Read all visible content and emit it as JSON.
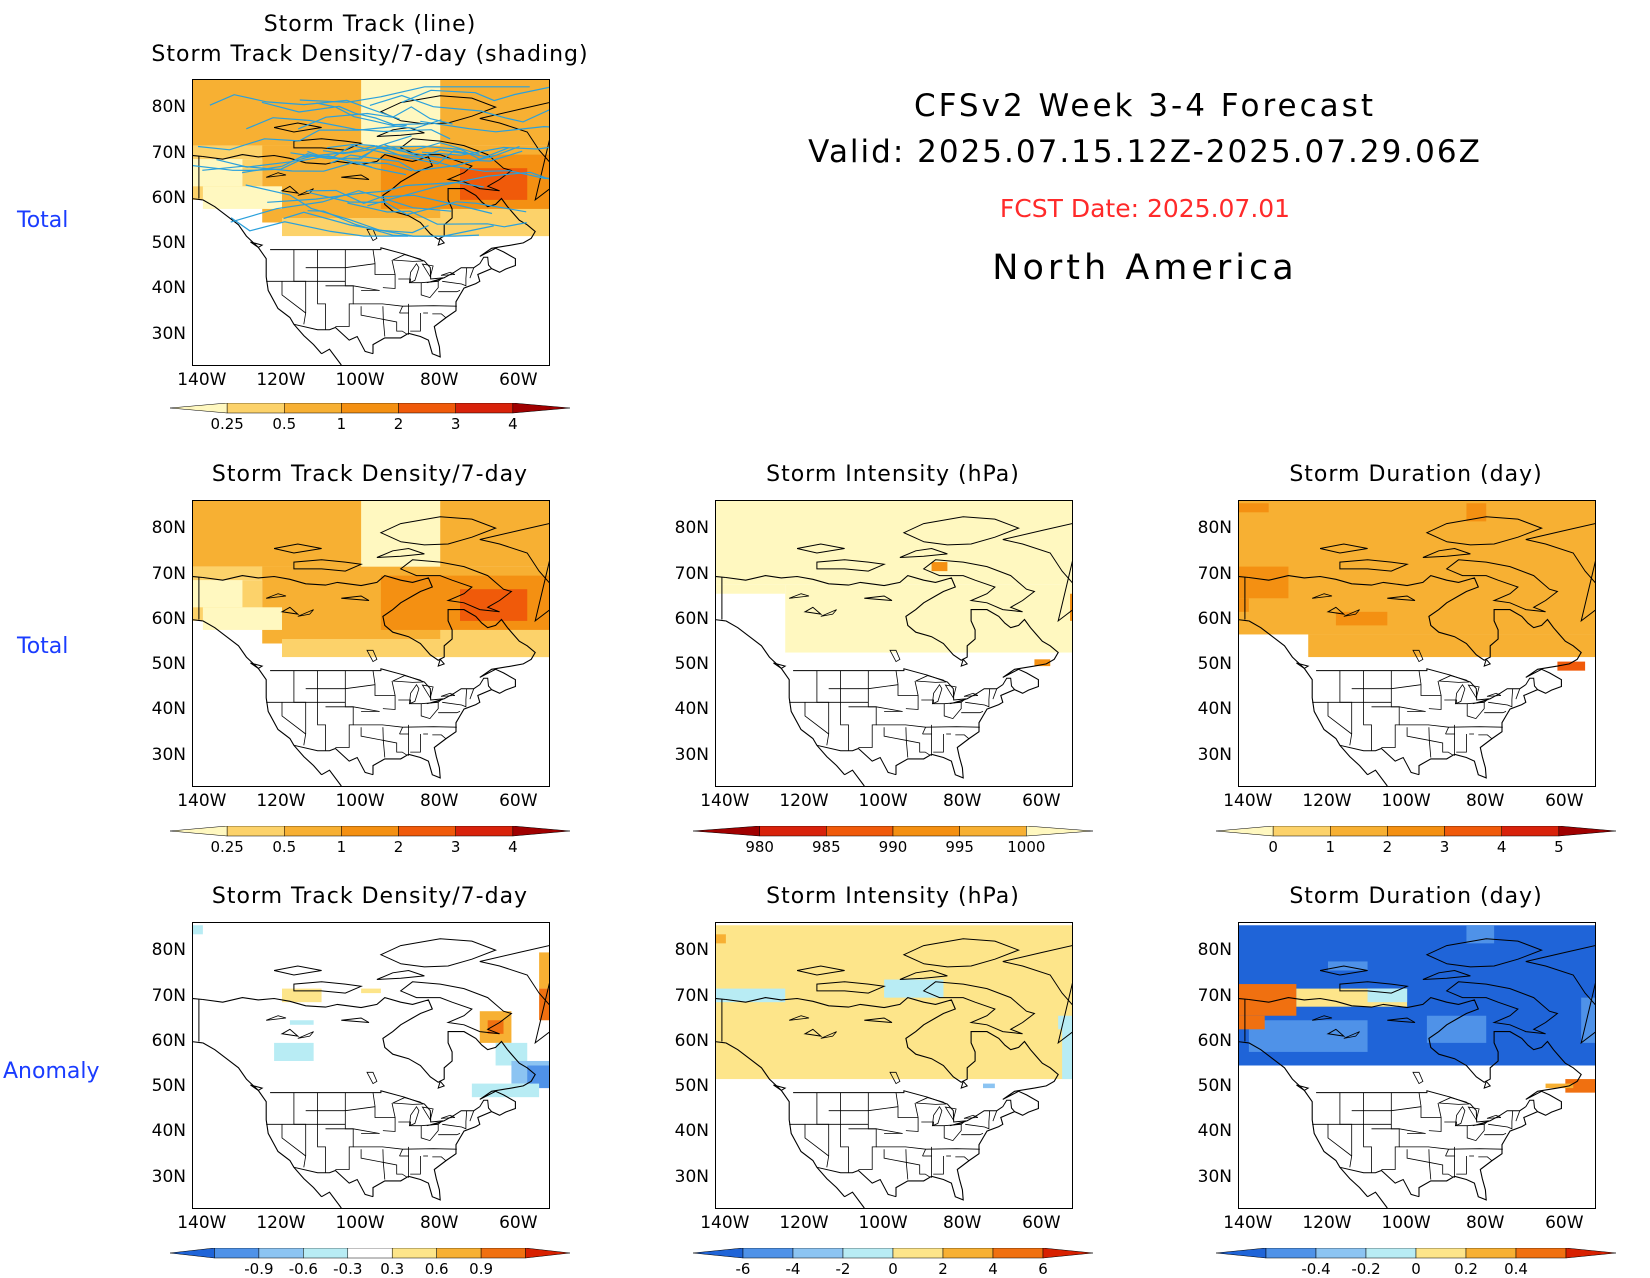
{
  "header": {
    "model_title": "CFSv2 Week 3-4 Forecast",
    "valid": "Valid: 2025.07.15.12Z-2025.07.29.06Z",
    "fcst_date": "FCST Date: 2025.07.01",
    "region": "North America",
    "fcst_color": "#ff2a2a"
  },
  "row_labels": [
    "Total",
    "Total",
    "Anomaly"
  ],
  "axes": {
    "lat_labels": [
      "80N",
      "70N",
      "60N",
      "50N",
      "40N",
      "30N"
    ],
    "lon_labels": [
      "140W",
      "120W",
      "100W",
      "80W",
      "60W"
    ]
  },
  "panels": [
    {
      "id": "track-line-total",
      "title": [
        "Storm Track (line)",
        "Storm Track Density/7-day (shading)"
      ],
      "colorbar": {
        "labels": [
          "0.25",
          "0.5",
          "1",
          "2",
          "3",
          "4"
        ],
        "colors": [
          "#fff8c0",
          "#fcd26a",
          "#f7b033",
          "#f49012",
          "#f05a0a",
          "#d8220a",
          "#a00000"
        ],
        "style": "warm"
      }
    },
    {
      "id": "density-total",
      "title": [
        "Storm Track Density/7-day"
      ],
      "colorbar": {
        "labels": [
          "0.25",
          "0.5",
          "1",
          "2",
          "3",
          "4"
        ],
        "colors": [
          "#fff8c0",
          "#fcd26a",
          "#f7b033",
          "#f49012",
          "#f05a0a",
          "#d8220a",
          "#a00000"
        ],
        "style": "warm"
      }
    },
    {
      "id": "intensity-total",
      "title": [
        "Storm Intensity (hPa)"
      ],
      "colorbar": {
        "labels": [
          "980",
          "985",
          "990",
          "995",
          "1000"
        ],
        "colors": [
          "#a00000",
          "#d8220a",
          "#f05a0a",
          "#f49012",
          "#f7b033",
          "#fff8c0"
        ],
        "style": "warm-reversed"
      }
    },
    {
      "id": "duration-total",
      "title": [
        "Storm Duration (day)"
      ],
      "colorbar": {
        "labels": [
          "0",
          "1",
          "2",
          "3",
          "4",
          "5"
        ],
        "colors": [
          "#fff8c0",
          "#fcd26a",
          "#f7b033",
          "#f49012",
          "#f05a0a",
          "#d8220a",
          "#a00000"
        ],
        "style": "warm"
      }
    },
    {
      "id": "density-anomaly",
      "title": [
        "Storm Track Density/7-day"
      ],
      "colorbar": {
        "labels": [
          "-0.9",
          "-0.6",
          "-0.3",
          "0.3",
          "0.6",
          "0.9"
        ],
        "colors": [
          "#1f64d8",
          "#4f92e8",
          "#8cc4f2",
          "#b8ecf4",
          "#ffffff",
          "#fde58a",
          "#f7b033",
          "#f07010",
          "#d82000"
        ],
        "style": "diverging"
      }
    },
    {
      "id": "intensity-anomaly",
      "title": [
        "Storm Intensity (hPa)"
      ],
      "colorbar": {
        "labels": [
          "-6",
          "-4",
          "-2",
          "0",
          "2",
          "4",
          "6"
        ],
        "colors": [
          "#1f64d8",
          "#4f92e8",
          "#8cc4f2",
          "#b8ecf4",
          "#fde58a",
          "#f7b033",
          "#f07010",
          "#d82000"
        ],
        "style": "diverging"
      }
    },
    {
      "id": "duration-anomaly",
      "title": [
        "Storm Duration (day)"
      ],
      "colorbar": {
        "labels": [
          "-0.4",
          "-0.2",
          "0",
          "0.2",
          "0.4"
        ],
        "colors": [
          "#1f64d8",
          "#4f92e8",
          "#8cc4f2",
          "#b8ecf4",
          "#fde58a",
          "#f7b033",
          "#f07010",
          "#d82000"
        ],
        "style": "diverging"
      }
    }
  ]
}
